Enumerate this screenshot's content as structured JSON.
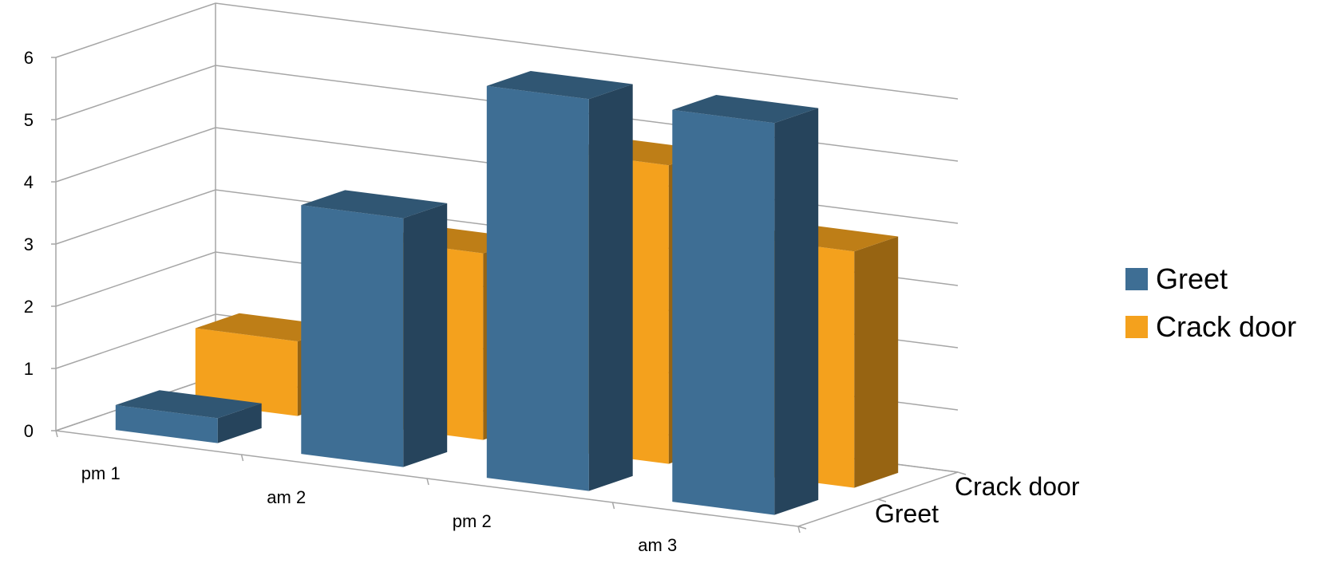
{
  "chart_data": {
    "type": "bar",
    "subtype": "3d-clustered-column",
    "title": "",
    "categories": [
      "pm 1",
      "am 2",
      "pm 2",
      "am 3"
    ],
    "series": [
      {
        "name": "Greet",
        "color": "#3e6e94",
        "values": [
          0.4,
          4.0,
          6.3,
          6.3
        ]
      },
      {
        "name": "Crack door",
        "color": "#f4a11d",
        "values": [
          1.2,
          3.0,
          4.8,
          3.8
        ]
      }
    ],
    "ylim": [
      0,
      6
    ],
    "yticks": [
      "0",
      "1",
      "2",
      "3",
      "4",
      "5",
      "6"
    ],
    "depth_labels": [
      "Greet",
      "Crack door"
    ],
    "grid": true,
    "legend_position": "right"
  },
  "legend": {
    "items": [
      {
        "label": "Greet",
        "color": "#3e6e94"
      },
      {
        "label": "Crack door",
        "color": "#f4a11d"
      }
    ]
  }
}
